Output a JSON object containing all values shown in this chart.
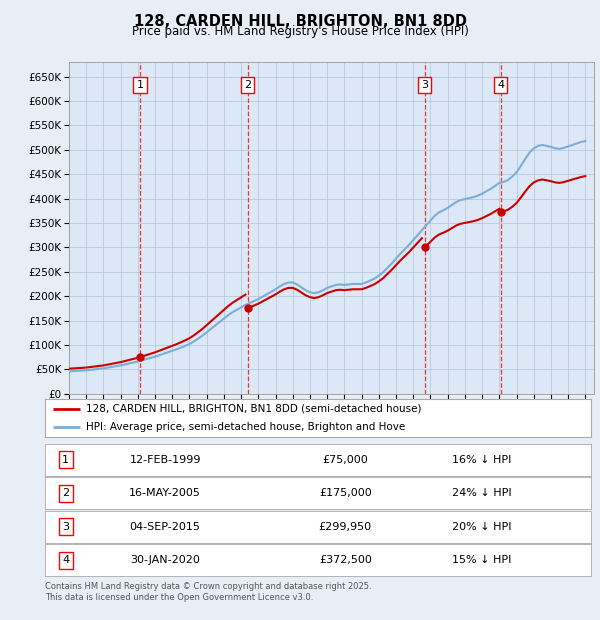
{
  "title": "128, CARDEN HILL, BRIGHTON, BN1 8DD",
  "subtitle": "Price paid vs. HM Land Registry's House Price Index (HPI)",
  "legend_line1": "128, CARDEN HILL, BRIGHTON, BN1 8DD (semi-detached house)",
  "legend_line2": "HPI: Average price, semi-detached house, Brighton and Hove",
  "footnote": "Contains HM Land Registry data © Crown copyright and database right 2025.\nThis data is licensed under the Open Government Licence v3.0.",
  "xlim_start": 1995.0,
  "xlim_end": 2025.5,
  "ylim_min": 0,
  "ylim_max": 680000,
  "yticks": [
    0,
    50000,
    100000,
    150000,
    200000,
    250000,
    300000,
    350000,
    400000,
    450000,
    500000,
    550000,
    600000,
    650000
  ],
  "ytick_labels": [
    "£0",
    "£50K",
    "£100K",
    "£150K",
    "£200K",
    "£250K",
    "£300K",
    "£350K",
    "£400K",
    "£450K",
    "£500K",
    "£550K",
    "£600K",
    "£650K"
  ],
  "xticks": [
    1995,
    1996,
    1997,
    1998,
    1999,
    2000,
    2001,
    2002,
    2003,
    2004,
    2005,
    2006,
    2007,
    2008,
    2009,
    2010,
    2011,
    2012,
    2013,
    2014,
    2015,
    2016,
    2017,
    2018,
    2019,
    2020,
    2021,
    2022,
    2023,
    2024,
    2025
  ],
  "sale_dates": [
    1999.12,
    2005.37,
    2015.67,
    2020.08
  ],
  "sale_prices": [
    75000,
    175000,
    299950,
    372500
  ],
  "sale_labels": [
    "1",
    "2",
    "3",
    "4"
  ],
  "sale_annotations": [
    "12-FEB-1999",
    "16-MAY-2005",
    "04-SEP-2015",
    "30-JAN-2020"
  ],
  "sale_prices_text": [
    "£75,000",
    "£175,000",
    "£299,950",
    "£372,500"
  ],
  "sale_discount": [
    "16% ↓ HPI",
    "24% ↓ HPI",
    "20% ↓ HPI",
    "15% ↓ HPI"
  ],
  "hpi_color": "#7aaed6",
  "sale_line_color": "#cc0000",
  "vline_color": "#ee3333",
  "background_color": "#e8eef5",
  "plot_bg_color": "#dce8f5",
  "grid_color": "#b0c4d8",
  "hpi_x": [
    1995.0,
    1995.25,
    1995.5,
    1995.75,
    1996.0,
    1996.25,
    1996.5,
    1996.75,
    1997.0,
    1997.25,
    1997.5,
    1997.75,
    1998.0,
    1998.25,
    1998.5,
    1998.75,
    1999.0,
    1999.25,
    1999.5,
    1999.75,
    2000.0,
    2000.25,
    2000.5,
    2000.75,
    2001.0,
    2001.25,
    2001.5,
    2001.75,
    2002.0,
    2002.25,
    2002.5,
    2002.75,
    2003.0,
    2003.25,
    2003.5,
    2003.75,
    2004.0,
    2004.25,
    2004.5,
    2004.75,
    2005.0,
    2005.25,
    2005.5,
    2005.75,
    2006.0,
    2006.25,
    2006.5,
    2006.75,
    2007.0,
    2007.25,
    2007.5,
    2007.75,
    2008.0,
    2008.25,
    2008.5,
    2008.75,
    2009.0,
    2009.25,
    2009.5,
    2009.75,
    2010.0,
    2010.25,
    2010.5,
    2010.75,
    2011.0,
    2011.25,
    2011.5,
    2011.75,
    2012.0,
    2012.25,
    2012.5,
    2012.75,
    2013.0,
    2013.25,
    2013.5,
    2013.75,
    2014.0,
    2014.25,
    2014.5,
    2014.75,
    2015.0,
    2015.25,
    2015.5,
    2015.75,
    2016.0,
    2016.25,
    2016.5,
    2016.75,
    2017.0,
    2017.25,
    2017.5,
    2017.75,
    2018.0,
    2018.25,
    2018.5,
    2018.75,
    2019.0,
    2019.25,
    2019.5,
    2019.75,
    2020.0,
    2020.25,
    2020.5,
    2020.75,
    2021.0,
    2021.25,
    2021.5,
    2021.75,
    2022.0,
    2022.25,
    2022.5,
    2022.75,
    2023.0,
    2023.25,
    2023.5,
    2023.75,
    2024.0,
    2024.25,
    2024.5,
    2024.75,
    2025.0
  ],
  "hpi_y": [
    46000,
    46500,
    47000,
    47500,
    48000,
    49000,
    50000,
    51000,
    52000,
    53500,
    55000,
    56500,
    58000,
    60000,
    62000,
    64000,
    66000,
    68500,
    71000,
    73500,
    76000,
    79000,
    82000,
    85000,
    88000,
    91000,
    94500,
    98000,
    102000,
    107000,
    113000,
    119000,
    126000,
    133000,
    140000,
    147000,
    154000,
    161000,
    167000,
    172000,
    177000,
    182000,
    186000,
    190000,
    194000,
    199000,
    204000,
    209000,
    214000,
    220000,
    225000,
    228000,
    228000,
    224000,
    218000,
    212000,
    208000,
    206000,
    208000,
    212000,
    217000,
    220000,
    223000,
    224000,
    223000,
    224000,
    225000,
    225000,
    225000,
    228000,
    232000,
    236000,
    242000,
    249000,
    258000,
    267000,
    277000,
    287000,
    296000,
    305000,
    315000,
    325000,
    335000,
    345000,
    355000,
    365000,
    372000,
    376000,
    381000,
    387000,
    393000,
    397000,
    399000,
    401000,
    403000,
    406000,
    410000,
    415000,
    420000,
    426000,
    432000,
    434000,
    438000,
    445000,
    454000,
    467000,
    481000,
    494000,
    503000,
    508000,
    510000,
    508000,
    506000,
    503000,
    502000,
    504000,
    507000,
    510000,
    513000,
    516000,
    518000
  ]
}
